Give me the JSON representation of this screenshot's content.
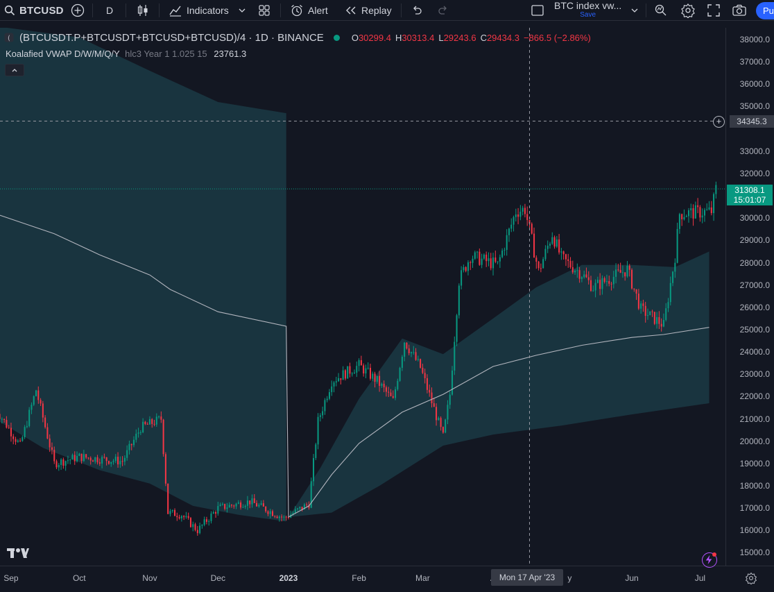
{
  "toolbar": {
    "symbol": "BTCUSD",
    "interval": "D",
    "indicators_label": "Indicators",
    "alert_label": "Alert",
    "replay_label": "Replay",
    "layout_name": "BTC index vw...",
    "layout_save": "Save",
    "publish_label": "Pu"
  },
  "legend": {
    "series_title": "(BTCUSDT.P+BTCUSDT+BTCUSD+BTCUSD)/4 · 1D · BINANCE",
    "o_key": "O",
    "o_val": "30299.4",
    "h_key": "H",
    "h_val": "30313.4",
    "l_key": "L",
    "l_val": "29243.6",
    "c_key": "C",
    "c_val": "29434.3",
    "change": "−866.5 (−2.86%)",
    "indicator_name": "Koalafied VWAP D/W/M/Q/Y",
    "indicator_params": "hlc3 Year 1 1.025 15",
    "indicator_value": "23761.3"
  },
  "price_axis": {
    "ticks": [
      "38000.0",
      "37000.0",
      "36000.0",
      "35000.0",
      "33000.0",
      "32000.0",
      "30000.0",
      "29000.0",
      "28000.0",
      "27000.0",
      "26000.0",
      "25000.0",
      "24000.0",
      "23000.0",
      "22000.0",
      "21000.0",
      "20000.0",
      "19000.0",
      "18000.0",
      "17000.0",
      "16000.0",
      "15000.0"
    ],
    "crosshair_price": "34345.3",
    "last_price": "31308.1",
    "countdown": "15:01:07"
  },
  "time_axis": {
    "ticks": [
      "Sep",
      "Oct",
      "Nov",
      "Dec",
      "2023",
      "Feb",
      "Mar",
      "A",
      "y",
      "Jun",
      "Jul"
    ],
    "crosshair_date": "Mon 17 Apr '23"
  },
  "colors": {
    "background": "#131722",
    "up": "#089981",
    "down": "#f23645",
    "vwap": "#b2b5be",
    "band_fill": "#1b3a44",
    "accent": "#2962ff"
  },
  "chart_data": {
    "type": "candlestick",
    "price_range": [
      14700,
      38600
    ],
    "candles": [],
    "vwap_line": [
      [
        "2022-08-25",
        30200
      ],
      [
        "2022-09-20",
        29300
      ],
      [
        "2022-10-10",
        28350
      ],
      [
        "2022-11-01",
        27450
      ],
      [
        "2022-11-10",
        26800
      ],
      [
        "2022-12-01",
        25800
      ],
      [
        "2022-12-31",
        25150
      ],
      [
        "2023-01-01",
        16600
      ],
      [
        "2023-01-10",
        17100
      ],
      [
        "2023-01-20",
        18500
      ],
      [
        "2023-02-01",
        19900
      ],
      [
        "2023-02-20",
        21300
      ],
      [
        "2023-03-10",
        22100
      ],
      [
        "2023-04-01",
        23350
      ],
      [
        "2023-04-20",
        23850
      ],
      [
        "2023-05-10",
        24300
      ],
      [
        "2023-06-01",
        24650
      ],
      [
        "2023-06-15",
        24780
      ],
      [
        "2023-07-05",
        25100
      ]
    ],
    "upper_band": [
      [
        "2022-08-25",
        38600
      ],
      [
        "2022-10-01",
        38100
      ],
      [
        "2022-11-01",
        36600
      ],
      [
        "2022-12-01",
        35200
      ],
      [
        "2022-12-31",
        34700
      ],
      [
        "2023-01-01",
        16600
      ],
      [
        "2023-01-15",
        18800
      ],
      [
        "2023-02-01",
        21900
      ],
      [
        "2023-02-20",
        24600
      ],
      [
        "2023-03-10",
        23900
      ],
      [
        "2023-04-01",
        25500
      ],
      [
        "2023-04-20",
        26900
      ],
      [
        "2023-05-10",
        27900
      ],
      [
        "2023-06-01",
        27900
      ],
      [
        "2023-06-20",
        27800
      ],
      [
        "2023-07-05",
        28500
      ]
    ],
    "lower_band": [
      [
        "2022-08-25",
        21000
      ],
      [
        "2022-09-15",
        19700
      ],
      [
        "2022-10-10",
        18700
      ],
      [
        "2022-11-01",
        18100
      ],
      [
        "2022-11-20",
        17100
      ],
      [
        "2022-12-10",
        16700
      ],
      [
        "2022-12-31",
        16400
      ],
      [
        "2023-01-01",
        16600
      ],
      [
        "2023-01-20",
        16800
      ],
      [
        "2023-02-10",
        18000
      ],
      [
        "2023-03-10",
        19800
      ],
      [
        "2023-04-01",
        20300
      ],
      [
        "2023-05-01",
        20700
      ],
      [
        "2023-06-01",
        21200
      ],
      [
        "2023-07-05",
        21700
      ]
    ],
    "crosshair": {
      "date": "2023-04-17",
      "price": 34345.3
    },
    "last_price_line": 31308.1
  }
}
